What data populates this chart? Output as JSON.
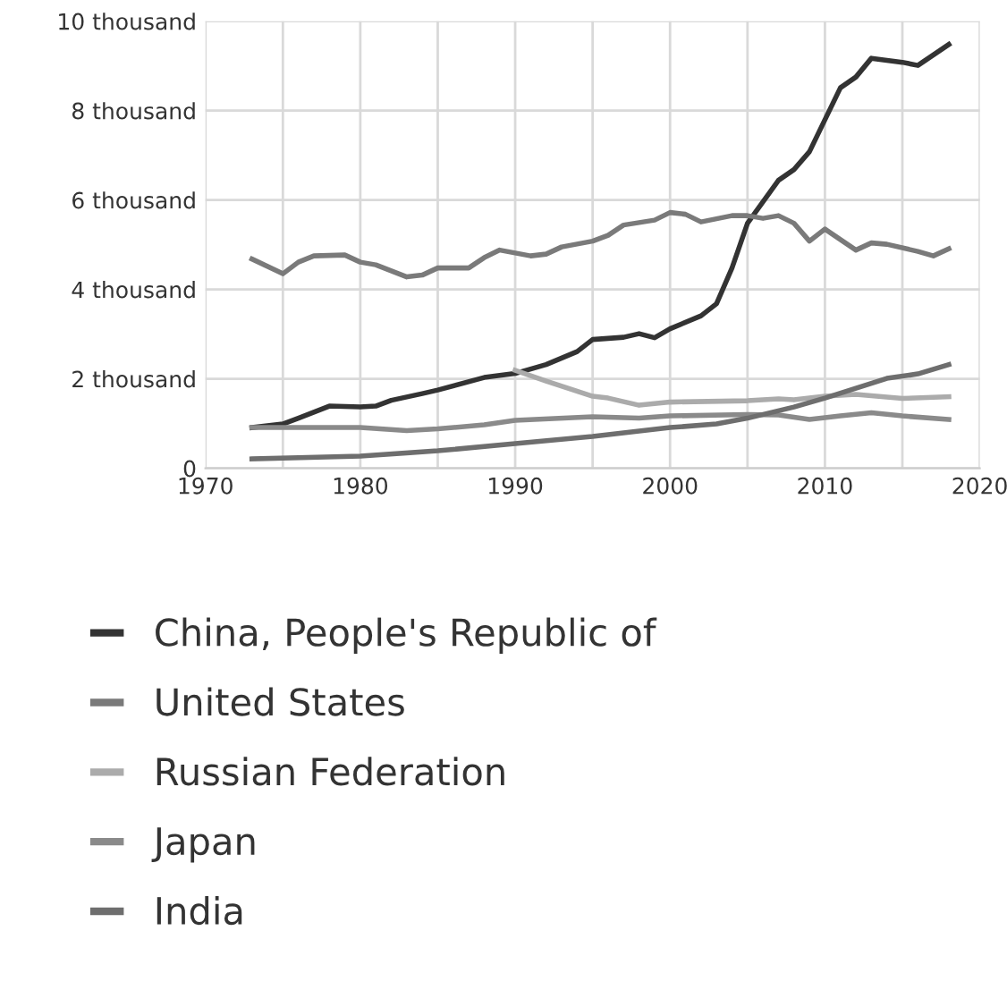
{
  "chart_data": {
    "type": "line",
    "xlim": [
      1970,
      2020
    ],
    "xticks": [
      1970,
      {
        "value": 1975,
        "label": null
      },
      1980,
      {
        "value": 1985,
        "label": null
      },
      1990,
      {
        "value": 1995,
        "label": null
      },
      2000,
      {
        "value": 2005,
        "label": null
      },
      2010,
      {
        "value": 2015,
        "label": null
      },
      2020
    ],
    "ylim": [
      0,
      10000
    ],
    "yticks": [
      {
        "value": 0,
        "label": "0"
      },
      {
        "value": 2000,
        "label": "2 thousand"
      },
      {
        "value": 4000,
        "label": "4 thousand"
      },
      {
        "value": 6000,
        "label": "6 thousand"
      },
      {
        "value": 8000,
        "label": "8 thousand"
      },
      {
        "value": 10000,
        "label": "10 thousand"
      }
    ],
    "grid": true,
    "legend": "bottom",
    "series": [
      {
        "name": "China, People's Republic of",
        "color": "#333333",
        "x": [
          1973,
          1975,
          1976,
          1978,
          1980,
          1981,
          1982,
          1984,
          1985,
          1988,
          1990,
          1992,
          1994,
          1995,
          1997,
          1998,
          1999,
          2000,
          2002,
          2003,
          2004,
          2005,
          2007,
          2008,
          2009,
          2011,
          2012,
          2013,
          2015,
          2016,
          2018
        ],
        "values": [
          910,
          990,
          1120,
          1390,
          1370,
          1390,
          1520,
          1670,
          1750,
          2030,
          2120,
          2320,
          2610,
          2880,
          2930,
          3010,
          2920,
          3120,
          3410,
          3680,
          4480,
          5480,
          6440,
          6680,
          7080,
          8510,
          8750,
          9170,
          9080,
          9010,
          9480
        ]
      },
      {
        "name": "United States",
        "color": "#7a7a7a",
        "x": [
          1973,
          1975,
          1976,
          1977,
          1979,
          1980,
          1981,
          1983,
          1984,
          1985,
          1987,
          1988,
          1989,
          1991,
          1992,
          1993,
          1995,
          1996,
          1997,
          1999,
          2000,
          2001,
          2002,
          2004,
          2005,
          2006,
          2007,
          2008,
          2009,
          2010,
          2012,
          2013,
          2014,
          2016,
          2017,
          2018
        ],
        "values": [
          4680,
          4350,
          4610,
          4750,
          4770,
          4610,
          4550,
          4280,
          4320,
          4480,
          4480,
          4710,
          4880,
          4750,
          4790,
          4950,
          5080,
          5210,
          5440,
          5550,
          5720,
          5680,
          5510,
          5650,
          5650,
          5590,
          5650,
          5480,
          5080,
          5350,
          4880,
          5040,
          5010,
          4850,
          4750,
          4910
        ]
      },
      {
        "name": "Russian Federation",
        "color": "#ababab",
        "x": [
          1990,
          1992,
          1995,
          1996,
          1998,
          2000,
          2005,
          2007,
          2008,
          2010,
          2012,
          2015,
          2018
        ],
        "values": [
          2190,
          1950,
          1610,
          1570,
          1410,
          1480,
          1510,
          1550,
          1530,
          1610,
          1650,
          1560,
          1600
        ]
      },
      {
        "name": "Japan",
        "color": "#8a8a8a",
        "x": [
          1973,
          1975,
          1980,
          1983,
          1985,
          1988,
          1990,
          1995,
          1998,
          2000,
          2005,
          2007,
          2009,
          2011,
          2013,
          2015,
          2018
        ],
        "values": [
          910,
          910,
          910,
          840,
          880,
          970,
          1070,
          1150,
          1120,
          1170,
          1200,
          1190,
          1090,
          1170,
          1240,
          1170,
          1090
        ]
      },
      {
        "name": "India",
        "color": "#6e6e6e",
        "x": [
          1973,
          1980,
          1985,
          1990,
          1995,
          2000,
          2003,
          2005,
          2008,
          2010,
          2012,
          2014,
          2016,
          2018
        ],
        "values": [
          210,
          270,
          390,
          550,
          710,
          910,
          990,
          1120,
          1370,
          1570,
          1790,
          2010,
          2110,
          2320
        ]
      }
    ]
  }
}
